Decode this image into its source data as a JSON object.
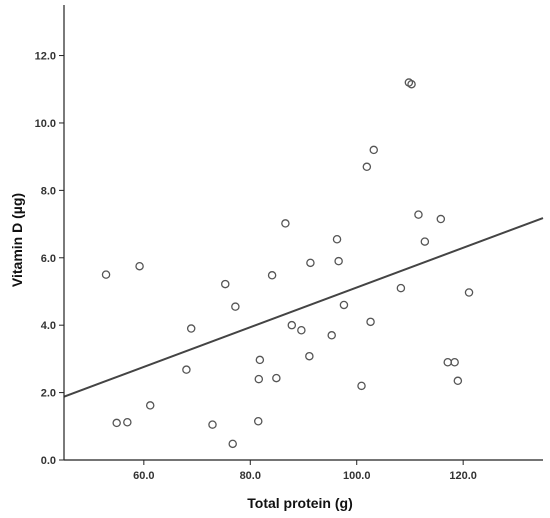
{
  "chart_data": {
    "type": "scatter",
    "xlabel": "Total protein (g)",
    "ylabel": "Vitamin D (µg)",
    "xlim": [
      45,
      135
    ],
    "ylim": [
      0,
      13.5
    ],
    "x_ticks": [
      60,
      80,
      100,
      120
    ],
    "x_tick_labels": [
      "60.0",
      "80.0",
      "100.0",
      "120.0"
    ],
    "y_ticks": [
      0,
      2,
      4,
      6,
      8,
      10,
      12
    ],
    "y_tick_labels": [
      "0.0",
      "2.0",
      "4.0",
      "6.0",
      "8.0",
      "10.0",
      "12.0"
    ],
    "grid": false,
    "colors": {
      "marker": "#555555",
      "line": "#444444",
      "axis": "#222222"
    },
    "points": [
      {
        "x": 52.9,
        "y": 5.5
      },
      {
        "x": 54.9,
        "y": 1.1
      },
      {
        "x": 56.9,
        "y": 1.12
      },
      {
        "x": 59.2,
        "y": 5.75
      },
      {
        "x": 61.2,
        "y": 1.62
      },
      {
        "x": 68.0,
        "y": 2.68
      },
      {
        "x": 68.9,
        "y": 3.9
      },
      {
        "x": 72.9,
        "y": 1.05
      },
      {
        "x": 75.3,
        "y": 5.22
      },
      {
        "x": 76.7,
        "y": 0.48
      },
      {
        "x": 77.2,
        "y": 4.55
      },
      {
        "x": 81.5,
        "y": 1.15
      },
      {
        "x": 81.6,
        "y": 2.4
      },
      {
        "x": 81.8,
        "y": 2.97
      },
      {
        "x": 84.1,
        "y": 5.48
      },
      {
        "x": 84.9,
        "y": 2.43
      },
      {
        "x": 86.6,
        "y": 7.02
      },
      {
        "x": 87.8,
        "y": 4.0
      },
      {
        "x": 89.6,
        "y": 3.85
      },
      {
        "x": 91.1,
        "y": 3.08
      },
      {
        "x": 91.3,
        "y": 5.85
      },
      {
        "x": 95.3,
        "y": 3.7
      },
      {
        "x": 96.3,
        "y": 6.55
      },
      {
        "x": 96.6,
        "y": 5.9
      },
      {
        "x": 97.6,
        "y": 4.6
      },
      {
        "x": 100.9,
        "y": 2.2
      },
      {
        "x": 101.9,
        "y": 8.7
      },
      {
        "x": 102.6,
        "y": 4.1
      },
      {
        "x": 103.2,
        "y": 9.2
      },
      {
        "x": 108.3,
        "y": 5.1
      },
      {
        "x": 109.8,
        "y": 11.2
      },
      {
        "x": 110.3,
        "y": 11.15
      },
      {
        "x": 111.6,
        "y": 7.28
      },
      {
        "x": 112.8,
        "y": 6.48
      },
      {
        "x": 115.8,
        "y": 7.15
      },
      {
        "x": 117.1,
        "y": 2.9
      },
      {
        "x": 118.4,
        "y": 2.9
      },
      {
        "x": 119.0,
        "y": 2.35
      },
      {
        "x": 121.1,
        "y": 4.97
      }
    ],
    "fit_line": {
      "x": [
        45,
        135
      ],
      "y": [
        1.88,
        7.18
      ]
    }
  }
}
